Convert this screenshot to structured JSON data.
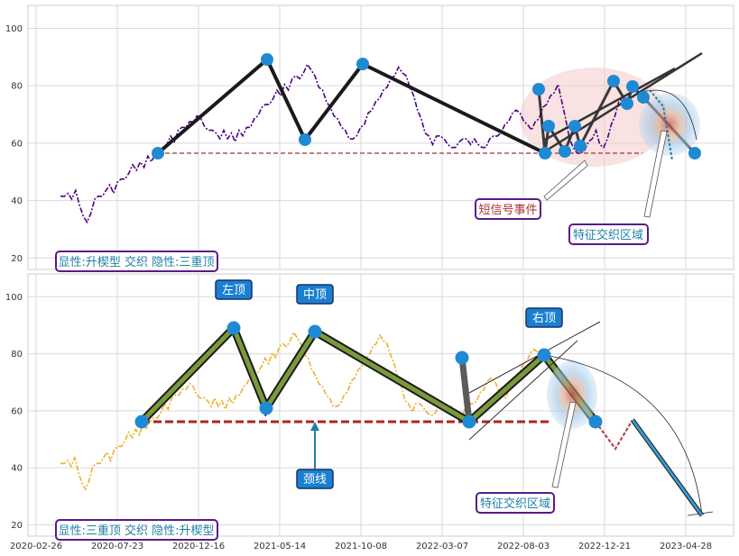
{
  "chart_data": [
    {
      "type": "line",
      "ylim": [
        16,
        108
      ],
      "yticks": [
        20,
        40,
        60,
        80,
        100
      ],
      "colors": {
        "price": "#4b0082",
        "pattern": "#1a1a1a",
        "neck": "#a83232"
      },
      "series": [
        {
          "values": [
            42,
            41,
            43,
            40,
            44,
            38,
            35,
            32,
            36,
            40,
            42,
            41,
            44,
            45,
            43,
            46,
            48,
            47,
            50,
            52,
            51,
            53,
            52,
            55,
            54,
            56,
            58,
            57,
            60,
            62,
            61,
            64,
            66,
            65,
            68,
            67,
            70,
            68,
            66,
            64,
            65,
            63,
            62,
            64,
            62,
            63,
            61,
            64,
            63,
            65,
            66,
            68,
            70,
            72,
            74,
            73,
            76,
            78,
            77,
            80,
            79,
            82,
            84,
            82,
            85,
            87,
            86,
            83,
            80,
            78,
            75,
            72,
            70,
            68,
            66,
            64,
            62,
            61,
            63,
            65,
            67,
            70,
            72,
            74,
            76,
            78,
            80,
            82,
            84,
            86,
            85,
            83,
            80,
            76,
            72,
            68,
            64,
            62,
            60,
            62,
            63,
            61,
            60,
            58,
            59,
            60,
            62,
            61,
            60,
            61,
            60,
            58,
            59,
            61,
            63,
            62,
            64,
            66,
            68,
            70,
            72,
            70,
            68,
            66,
            65,
            67,
            69,
            72,
            74,
            76,
            78,
            80,
            75,
            68,
            62,
            58,
            57,
            56,
            58,
            60,
            62,
            64,
            60,
            58,
            62,
            66,
            70,
            74,
            76
          ]
        }
      ],
      "annotations": [
        {
          "text": "短信号事件",
          "color": "#a83232"
        },
        {
          "text": "特征交织区域",
          "color": "#1f7fa8"
        },
        {
          "text": "显性:升楔型 交织 隐性:三重顶",
          "color": "#1f7fa8"
        }
      ]
    },
    {
      "type": "line",
      "ylim": [
        16,
        108
      ],
      "yticks": [
        20,
        40,
        60,
        80,
        100
      ],
      "x_tick_labels": [
        "2020-02-26",
        "2020-07-23",
        "2020-12-16",
        "2021-05-14",
        "2021-10-08",
        "2022-03-07",
        "2022-08-03",
        "2022-12-21",
        "2023-04-28"
      ],
      "colors": {
        "price": "#f0b030",
        "pattern": "#7a9a3a",
        "neck": "#b22222",
        "forecast": "#3a9ad0",
        "forecast_alt": "#b84848"
      },
      "series": [
        {
          "values": [
            42,
            41,
            43,
            40,
            44,
            38,
            35,
            32,
            36,
            40,
            42,
            41,
            44,
            45,
            43,
            46,
            48,
            47,
            50,
            52,
            51,
            53,
            52,
            55,
            54,
            56,
            58,
            57,
            60,
            62,
            61,
            64,
            66,
            65,
            68,
            67,
            70,
            68,
            66,
            64,
            65,
            63,
            62,
            64,
            62,
            63,
            61,
            64,
            63,
            65,
            66,
            68,
            70,
            72,
            74,
            73,
            76,
            78,
            77,
            80,
            79,
            82,
            84,
            82,
            85,
            87,
            86,
            83,
            80,
            78,
            75,
            72,
            70,
            68,
            66,
            64,
            62,
            61,
            63,
            65,
            67,
            70,
            72,
            74,
            76,
            78,
            80,
            82,
            84,
            86,
            85,
            83,
            80,
            76,
            72,
            68,
            64,
            62,
            60,
            62,
            63,
            61,
            60,
            58,
            59,
            60,
            62,
            61,
            60,
            61,
            60,
            58,
            59,
            61,
            63,
            62,
            64,
            66,
            68,
            70,
            72,
            70,
            68,
            66,
            65,
            67,
            69,
            72,
            74,
            76,
            78,
            80,
            82,
            80,
            78
          ]
        }
      ],
      "annotations": [
        {
          "text": "左顶",
          "color": "#1a7fd0"
        },
        {
          "text": "中顶",
          "color": "#1a7fd0"
        },
        {
          "text": "右顶",
          "color": "#1a7fd0"
        },
        {
          "text": "颈线",
          "color": "#1a7fd0"
        },
        {
          "text": "特征交织区域",
          "color": "#1f7fa8"
        },
        {
          "text": "显性:三重顶 交织 隐性:升楔型",
          "color": "#1f7fa8"
        }
      ]
    }
  ]
}
